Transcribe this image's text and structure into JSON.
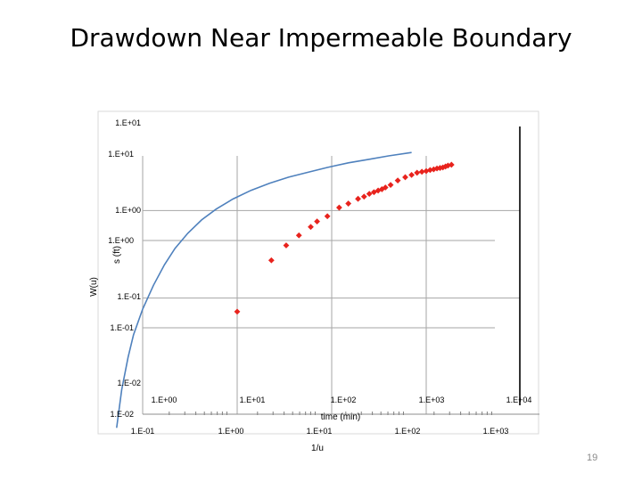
{
  "slide": {
    "title": "Drawdown Near Impermeable Boundary",
    "page_number": "19"
  },
  "chart_data": {
    "type": "scatter",
    "series": [
      {
        "kind": "line",
        "color": "#4f81bd",
        "x": [
          0.53,
          0.6,
          0.7,
          0.8,
          1.0,
          1.3,
          1.7,
          2.2,
          3.0,
          4.2,
          6.0,
          9.0,
          14,
          22,
          35,
          55,
          90,
          150,
          250,
          400,
          700
        ],
        "y": [
          0.0033,
          0.009,
          0.021,
          0.038,
          0.075,
          0.14,
          0.24,
          0.37,
          0.55,
          0.78,
          1.04,
          1.35,
          1.7,
          2.05,
          2.4,
          2.72,
          3.1,
          3.5,
          3.85,
          4.2,
          4.6
        ]
      },
      {
        "kind": "points",
        "color": "#e8231d",
        "x": [
          10,
          23,
          33,
          45,
          60,
          70,
          90,
          120,
          150,
          190,
          220,
          250,
          280,
          310,
          340,
          370,
          420,
          500,
          600,
          700,
          800,
          900,
          1000,
          1100,
          1200,
          1300,
          1400,
          1500,
          1600,
          1700,
          1850
        ],
        "y": [
          0.07,
          0.27,
          0.4,
          0.52,
          0.65,
          0.75,
          0.86,
          1.08,
          1.2,
          1.36,
          1.44,
          1.55,
          1.62,
          1.69,
          1.75,
          1.83,
          1.96,
          2.2,
          2.4,
          2.55,
          2.7,
          2.77,
          2.82,
          2.9,
          2.95,
          3.02,
          3.06,
          3.1,
          3.18,
          3.26,
          3.33
        ]
      }
    ],
    "axes": {
      "time": {
        "label": "time (min)",
        "scale": "log",
        "range": [
          1,
          10000
        ],
        "tick_labels": [
          "1.E+00",
          "1.E+01",
          "1.E+02",
          "1.E+03",
          "1.E+04"
        ]
      },
      "s": {
        "label": "s (ft)",
        "scale": "log",
        "range": [
          0.01,
          10
        ],
        "tick_labels": [
          "1.E-02",
          "1.E-01",
          "1.E+00",
          "1.E+01"
        ]
      },
      "inv_u": {
        "label": "1/u",
        "scale": "log",
        "range": [
          0.1,
          1000
        ],
        "tick_labels": [
          "1.E-01",
          "1.E+00",
          "1.E+01",
          "1.E+02",
          "1.E+03"
        ]
      },
      "W_u": {
        "label": "W(u)",
        "scale": "log",
        "range": [
          0.01,
          10
        ],
        "tick_labels": [
          "1.E-02",
          "1.E-01",
          "1.E+00",
          "1.E+01"
        ]
      }
    },
    "grid": true,
    "legend": "none"
  }
}
